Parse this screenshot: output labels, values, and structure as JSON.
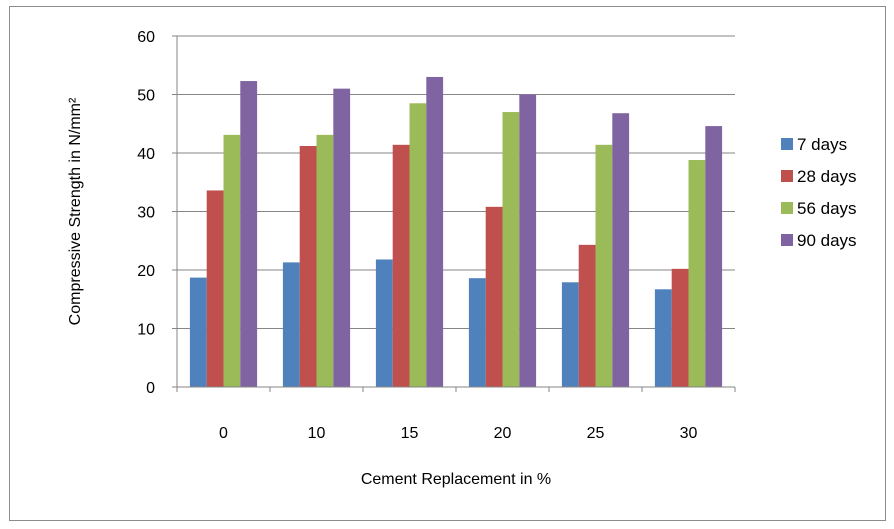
{
  "chart_data": {
    "type": "bar",
    "title": "",
    "xlabel": "Cement Replacement in %",
    "ylabel": "Compressive Strength in N/mm²",
    "categories": [
      "0",
      "10",
      "15",
      "20",
      "25",
      "30"
    ],
    "series": [
      {
        "name": "7 days",
        "color": "#4F81BD",
        "values": [
          18.7,
          21.3,
          21.8,
          18.6,
          17.9,
          16.7
        ]
      },
      {
        "name": "28 days",
        "color": "#C0504D",
        "values": [
          33.6,
          41.2,
          41.4,
          30.8,
          24.3,
          20.2
        ]
      },
      {
        "name": "56 days",
        "color": "#9BBB59",
        "values": [
          43.1,
          43.1,
          48.5,
          47.0,
          41.4,
          38.8
        ]
      },
      {
        "name": "90 days",
        "color": "#8064A2",
        "values": [
          52.3,
          51.0,
          53.0,
          50.0,
          46.8,
          44.6
        ]
      }
    ],
    "ylim": [
      0,
      60
    ],
    "yticks": [
      0,
      10,
      20,
      30,
      40,
      50,
      60
    ],
    "grid": true,
    "legend": "right"
  }
}
